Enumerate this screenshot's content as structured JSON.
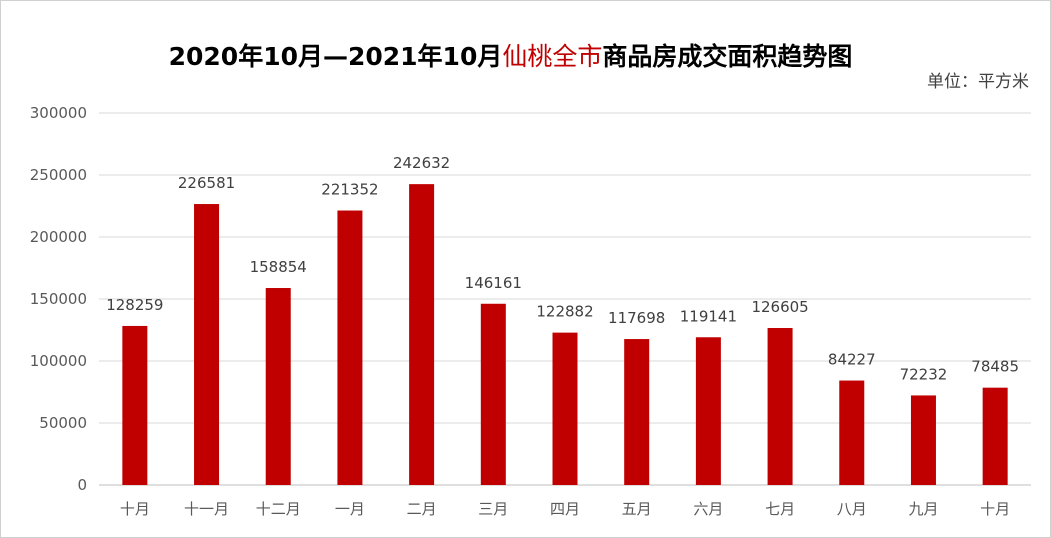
{
  "title": {
    "prefix": "2020年10月—2021年10月",
    "highlight": "仙桃全市",
    "suffix": "商品房成交面积趋势图"
  },
  "unit_label": "单位：平方米",
  "colors": {
    "bar": "#c00000",
    "title_highlight": "#c00000",
    "grid": "#d9d9d9"
  },
  "chart_data": {
    "type": "bar",
    "title": "2020年10月—2021年10月仙桃全市商品房成交面积趋势图",
    "xlabel": "",
    "ylabel": "",
    "categories": [
      "十月",
      "十一月",
      "十二月",
      "一月",
      "二月",
      "三月",
      "四月",
      "五月",
      "六月",
      "七月",
      "八月",
      "九月",
      "十月"
    ],
    "values": [
      128259,
      226581,
      158854,
      221352,
      242632,
      146161,
      122882,
      117698,
      119141,
      126605,
      84227,
      72232,
      78485
    ],
    "ylim": [
      0,
      300000
    ],
    "yticks": [
      0,
      50000,
      100000,
      150000,
      200000,
      250000,
      300000
    ],
    "grid": true,
    "data_labels": true
  }
}
